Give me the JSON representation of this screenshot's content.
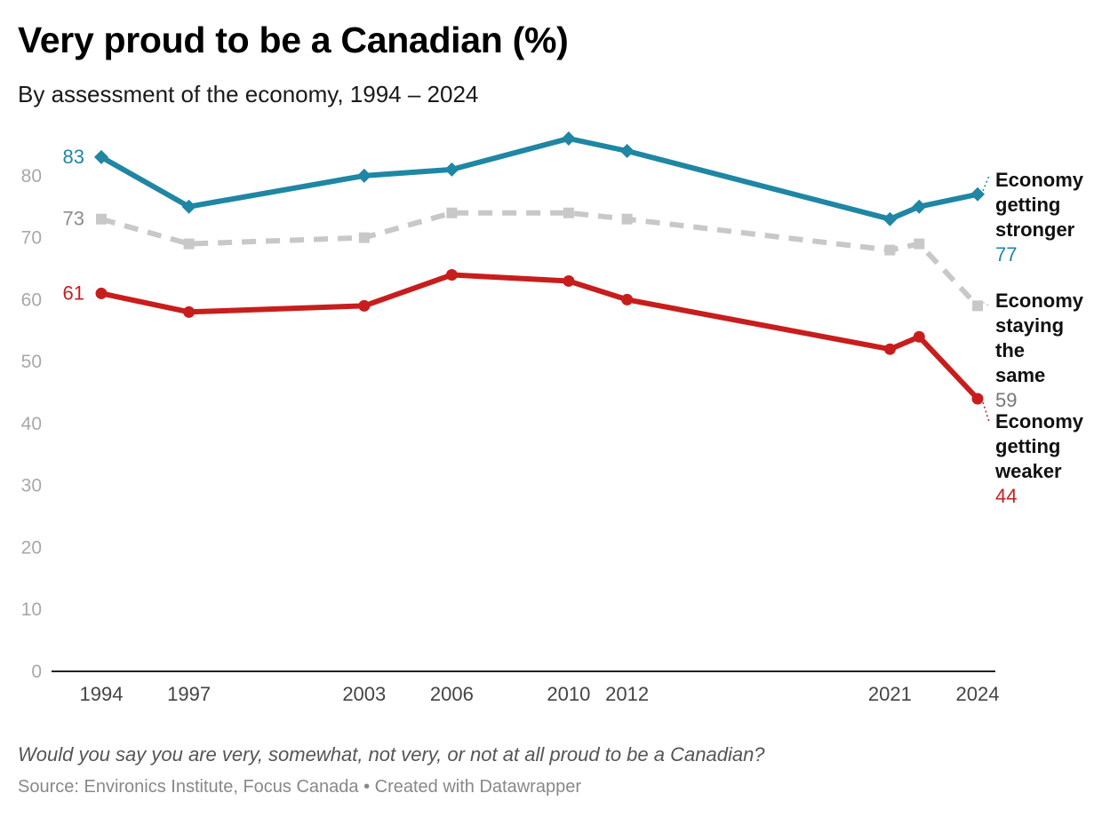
{
  "header": {
    "title": "Very proud to be a Canadian (%)",
    "subtitle": "By assessment of the economy, 1994 – 2024"
  },
  "footer": {
    "notes": "Would you say you are very, somewhat, not very, or not at all proud to be a Canadian?",
    "source": "Source: Environics Institute, Focus Canada • Created with Datawrapper"
  },
  "chart_data": {
    "type": "line",
    "title": "Very proud to be a Canadian (%)",
    "subtitle": "By assessment of the economy, 1994 – 2024",
    "ylim": [
      0,
      83
    ],
    "y_ticks": [
      0,
      10,
      20,
      30,
      40,
      50,
      60,
      70,
      80
    ],
    "x_ticks": [
      1994,
      1997,
      2003,
      2006,
      2010,
      2012,
      2021,
      2024
    ],
    "grid": false,
    "series": [
      {
        "name": "Economy getting stronger",
        "label_lines": [
          "Economy",
          "getting",
          "stronger"
        ],
        "color": "#1f86a4",
        "style": "solid",
        "marker": "diamond",
        "points": [
          [
            1994,
            83
          ],
          [
            1997,
            75
          ],
          [
            2003,
            80
          ],
          [
            2006,
            81
          ],
          [
            2010,
            86
          ],
          [
            2012,
            84
          ],
          [
            2021,
            73
          ],
          [
            2022,
            75
          ],
          [
            2024,
            77
          ]
        ],
        "start_label": "83",
        "end_label": "77"
      },
      {
        "name": "Economy staying the same",
        "label_lines": [
          "Economy",
          "staying",
          "the",
          "same"
        ],
        "color": "#c8c8c8",
        "style": "dashed",
        "marker": "square",
        "points": [
          [
            1994,
            73
          ],
          [
            1997,
            69
          ],
          [
            2003,
            70
          ],
          [
            2006,
            74
          ],
          [
            2010,
            74
          ],
          [
            2012,
            73
          ],
          [
            2021,
            68
          ],
          [
            2022,
            69
          ],
          [
            2024,
            59
          ]
        ],
        "start_label": "73",
        "end_label": "59"
      },
      {
        "name": "Economy getting weaker",
        "label_lines": [
          "Economy",
          "getting",
          "weaker"
        ],
        "color": "#c71e1d",
        "style": "solid",
        "marker": "circle",
        "points": [
          [
            1994,
            61
          ],
          [
            1997,
            58
          ],
          [
            2003,
            59
          ],
          [
            2006,
            64
          ],
          [
            2010,
            63
          ],
          [
            2012,
            60
          ],
          [
            2021,
            52
          ],
          [
            2022,
            54
          ],
          [
            2024,
            44
          ]
        ],
        "start_label": "61",
        "end_label": "44"
      }
    ]
  }
}
